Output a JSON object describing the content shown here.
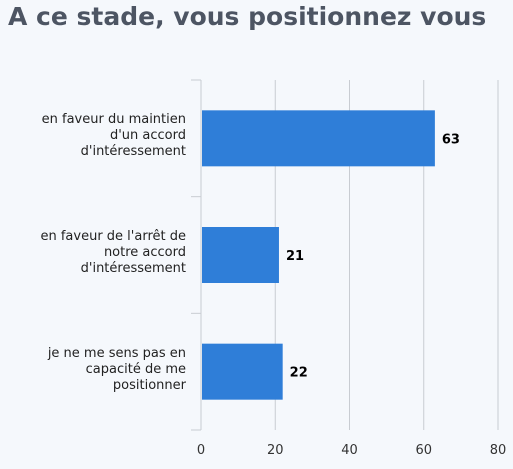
{
  "title": "A ce stade, vous positionnez vous",
  "colors": {
    "bar": "#2f7ed8",
    "grid": "#c8ccd2",
    "axis": "#c8ccd2",
    "title": "#4d5563",
    "background": "#f5f8fc"
  },
  "chart_data": {
    "type": "bar",
    "orientation": "horizontal",
    "title": "A ce stade, vous positionnez vous",
    "categories": [
      "en faveur du maintien\nd'un accord\nd'intéressement",
      "en faveur de l'arrêt de\nnotre accord\nd'intéressement",
      "je ne me sens pas en\ncapacité de me\npositionner"
    ],
    "values": [
      63,
      21,
      22
    ],
    "data_labels": [
      "63",
      "21",
      "22"
    ],
    "xlim": [
      0,
      80
    ],
    "x_ticks": [
      "0",
      "20",
      "40",
      "60",
      "80"
    ],
    "grid": true,
    "legend": "none"
  }
}
